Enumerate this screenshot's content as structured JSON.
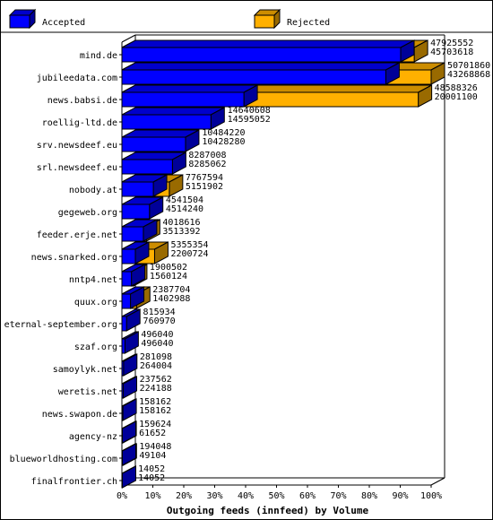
{
  "chart_data": {
    "type": "bar",
    "orientation": "horizontal",
    "stacked": "overlay-3d",
    "xlabel": "Outgoing feeds (innfeed) by Volume",
    "xlim": [
      0,
      100
    ],
    "xticks": [
      "0%",
      "10%",
      "20%",
      "30%",
      "40%",
      "50%",
      "60%",
      "70%",
      "80%",
      "90%",
      "100%"
    ],
    "legend_placement": "top",
    "series": [
      {
        "name": "Accepted",
        "color": "#0000ff"
      },
      {
        "name": "Rejected",
        "color": "#ffb000"
      }
    ],
    "categories": [
      "mind.de",
      "jubileedata.com",
      "news.babsi.de",
      "roellig-ltd.de",
      "srv.newsdeef.eu",
      "srl.newsdeef.eu",
      "nobody.at",
      "gegeweb.org",
      "feeder.erje.net",
      "news.snarked.org",
      "nntp4.net",
      "quux.org",
      "eternal-september.org",
      "szaf.org",
      "samoylyk.net",
      "weretis.net",
      "news.swapon.de",
      "agency-nz",
      "blueworldhosting.com",
      "finalfrontier.ch"
    ],
    "total": [
      "47925552",
      "50701860",
      "48588326",
      "14640608",
      "10484220",
      "8287008",
      "7767594",
      "4541504",
      "4018616",
      "5355354",
      "1900502",
      "2387704",
      "815934",
      "496040",
      "281098",
      "237562",
      "158162",
      "159624",
      "194048",
      "14052"
    ],
    "accepted": [
      "45703618",
      "43268868",
      "20001100",
      "14595052",
      "10428280",
      "8285062",
      "5151902",
      "4514240",
      "3513392",
      "2200724",
      "1560124",
      "1402988",
      "760970",
      "496040",
      "264004",
      "224188",
      "158162",
      "61652",
      "49104",
      "14052"
    ]
  }
}
